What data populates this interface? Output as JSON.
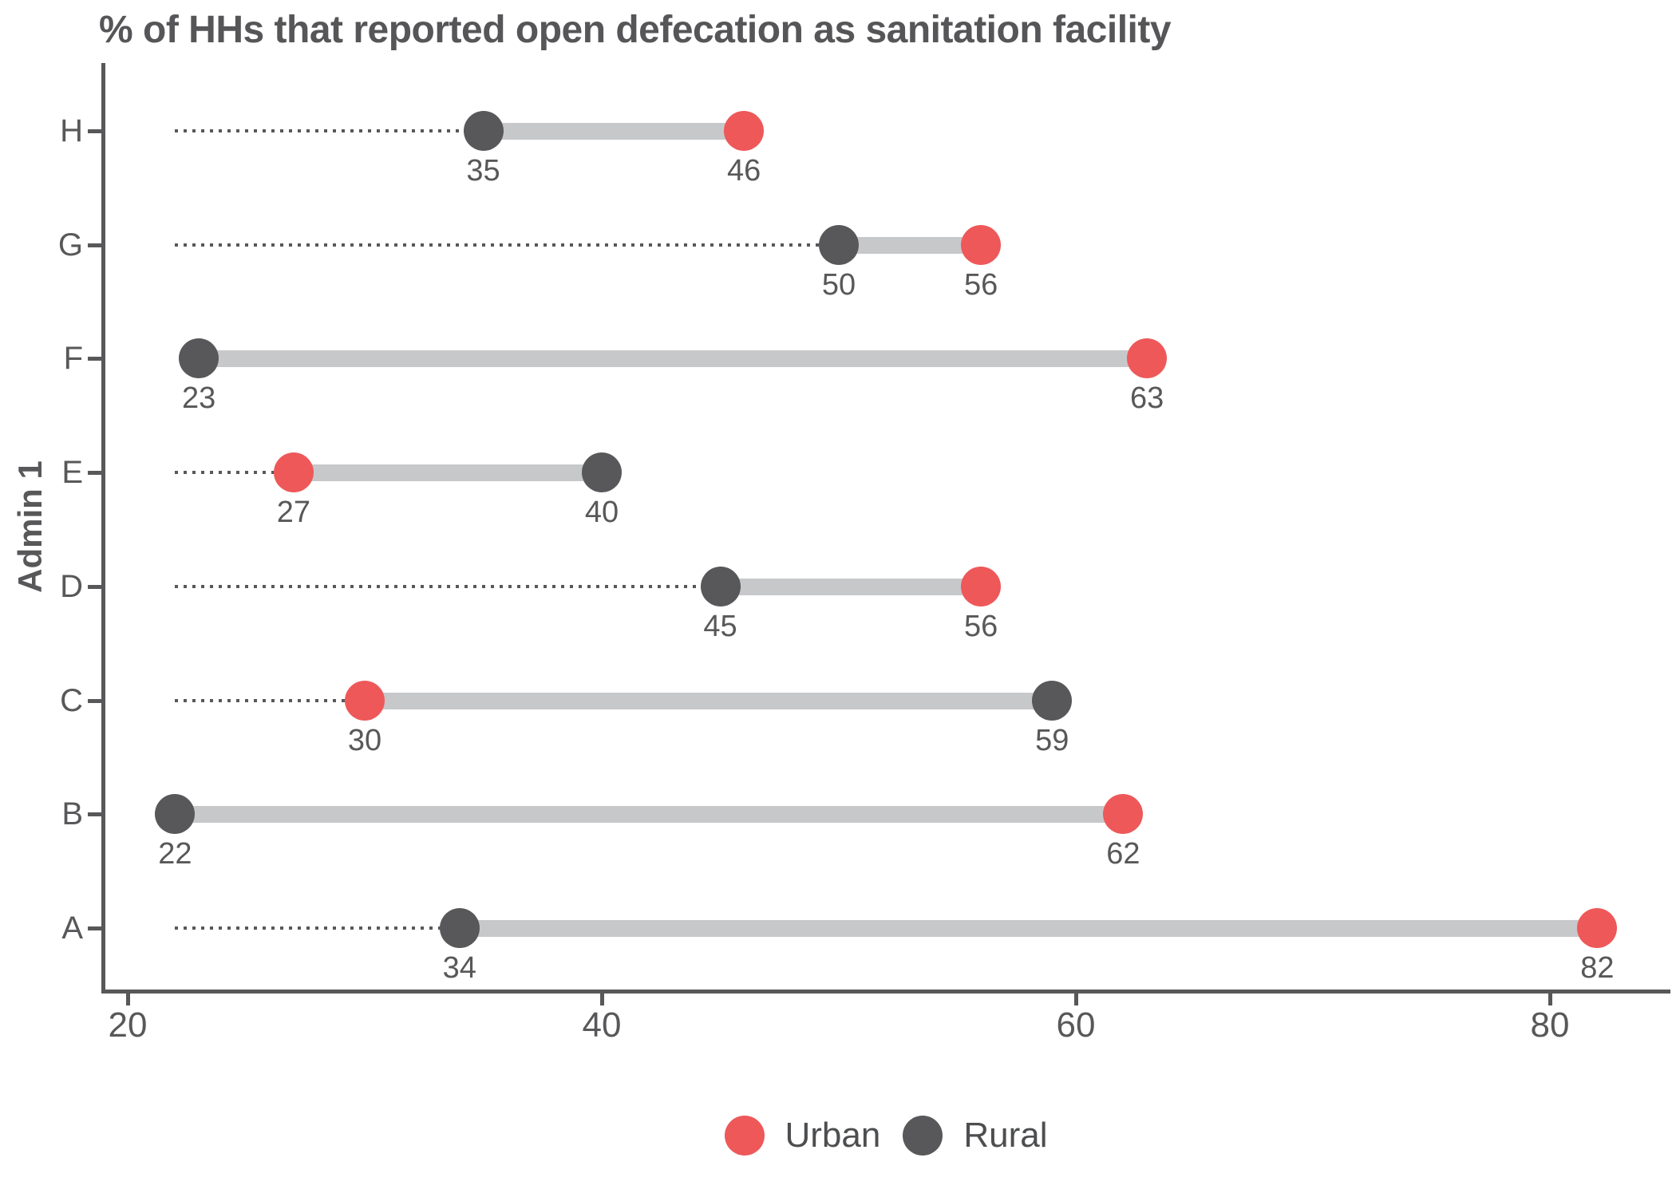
{
  "title": "% of HHs that reported open defecation as sanitation facility",
  "y_axis_label": "Admin 1",
  "legend": [
    {
      "label": "Urban",
      "color": "#EE5859"
    },
    {
      "label": "Rural",
      "color": "#58585A"
    }
  ],
  "colors": {
    "urban": "#EE5859",
    "rural": "#58585A",
    "connector": "#C7C8CA",
    "axis": "#58585A",
    "text": "#58585A"
  },
  "chart_data": {
    "type": "scatter",
    "variant": "dumbbell",
    "title": "% of HHs that reported open defecation as sanitation facility",
    "xlabel": "",
    "ylabel": "Admin 1",
    "categories": [
      "H",
      "G",
      "F",
      "E",
      "D",
      "C",
      "B",
      "A"
    ],
    "series": [
      {
        "name": "Urban",
        "color": "#EE5859",
        "values": [
          46,
          56,
          63,
          27,
          56,
          30,
          62,
          82
        ]
      },
      {
        "name": "Rural",
        "color": "#58585A",
        "values": [
          35,
          50,
          23,
          40,
          45,
          59,
          22,
          34
        ]
      }
    ],
    "x_ticks": [
      20,
      40,
      60,
      80
    ],
    "xlim": [
      19,
      85
    ],
    "leader_start_value": 22,
    "grid": "off",
    "legend_position": "bottom-center",
    "point_labels_shown": true
  }
}
